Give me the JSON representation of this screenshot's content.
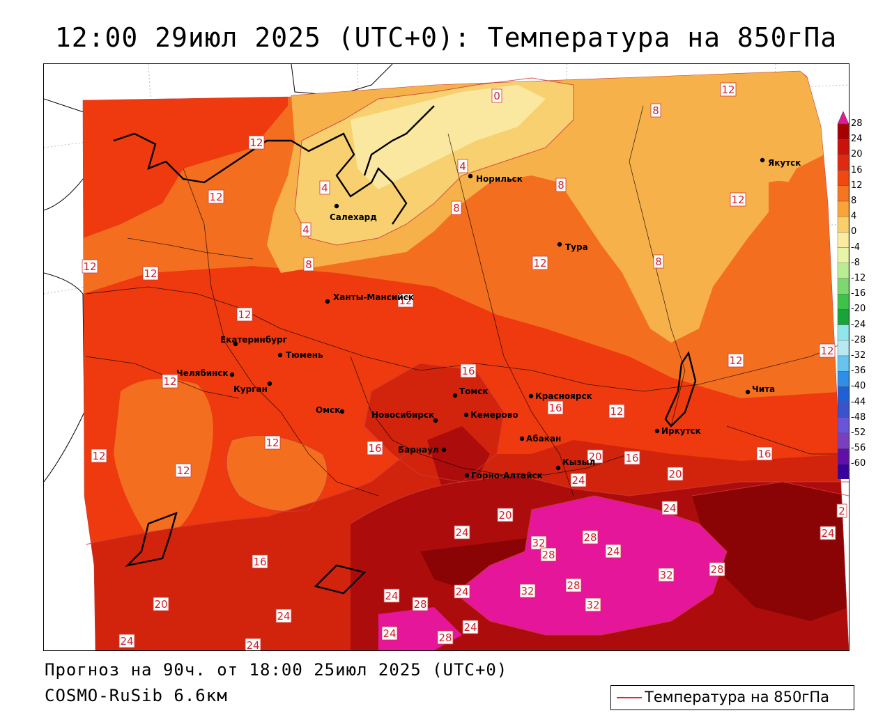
{
  "title": "12:00 29июл 2025 (UTC+0): Температура на 850гПа",
  "forecast_text": "Прогноз на 90ч. от 18:00 25июл 2025 (UTC+0)",
  "model_text": "COSMO-RuSib 6.6км",
  "legend": {
    "label": "Температура на 850гПа",
    "color": "#e8262a"
  },
  "colors": {
    "t_le4": "#fbe8a0",
    "t_4_8": "#f8d070",
    "t_8_12": "#f7b14a",
    "t_12_16": "#f46e20",
    "t_16_20": "#ee3a0e",
    "t_20_24": "#d2240c",
    "t_24_28": "#ad0c0c",
    "t_28_32": "#8a0405",
    "t_ge32": "#e5169a",
    "water": "#ffffff",
    "border": "#000000",
    "contour": "#cc3b3b"
  },
  "scale": {
    "labels": [
      "28",
      "24",
      "20",
      "16",
      "12",
      "8",
      "4",
      "0",
      "-4",
      "-8",
      "-12",
      "-16",
      "-20",
      "-24",
      "-28",
      "-32",
      "-36",
      "-40",
      "-44",
      "-48",
      "-52",
      "-56",
      "-60"
    ],
    "colors": [
      "#a60000",
      "#c8120a",
      "#e02a10",
      "#f04810",
      "#f57520",
      "#f8a43a",
      "#f9cf6a",
      "#faeba0",
      "#e6f5a8",
      "#b8ed94",
      "#7ed870",
      "#3fc24a",
      "#1aa33a",
      "#8fe6ec",
      "#b8e8f0",
      "#66c4ee",
      "#2f8fe8",
      "#2060d6",
      "#3a52cc",
      "#6a55d8",
      "#7a3fbf",
      "#6010a8",
      "#3a009a"
    ],
    "top_arrow": "#e01a9a",
    "bottom_arrow": "#b033b0"
  },
  "cities": [
    {
      "name": "Норильск"
    },
    {
      "name": "Якутск"
    },
    {
      "name": "Салехард"
    },
    {
      "name": "Тура"
    },
    {
      "name": "Ханты-Мансийск"
    },
    {
      "name": "Екатеринбург"
    },
    {
      "name": "Тюмень"
    },
    {
      "name": "Челябинск"
    },
    {
      "name": "Курган"
    },
    {
      "name": "Омск"
    },
    {
      "name": "Томск"
    },
    {
      "name": "Новосибирск"
    },
    {
      "name": "Кемерово"
    },
    {
      "name": "Красноярск"
    },
    {
      "name": "Барнаул"
    },
    {
      "name": "Абакан"
    },
    {
      "name": "Иркутск"
    },
    {
      "name": "Кызыл"
    },
    {
      "name": "Горно-Алтайск"
    },
    {
      "name": "Чита"
    }
  ],
  "isotherm_labels": [
    "0",
    "8",
    "12",
    "12",
    "4",
    "12",
    "12",
    "8",
    "4",
    "8",
    "12",
    "4",
    "8",
    "12",
    "8",
    "12",
    "12",
    "12",
    "12",
    "12",
    "12",
    "12",
    "12",
    "16",
    "16",
    "16",
    "12",
    "20",
    "16",
    "16",
    "12",
    "20",
    "24",
    "20",
    "24",
    "24",
    "24",
    "32",
    "28",
    "28",
    "24",
    "32",
    "28",
    "16",
    "20",
    "32",
    "28",
    "24",
    "28",
    "32",
    "24",
    "24",
    "24",
    "24",
    "24",
    "28",
    "24",
    "28",
    "12",
    "2"
  ]
}
